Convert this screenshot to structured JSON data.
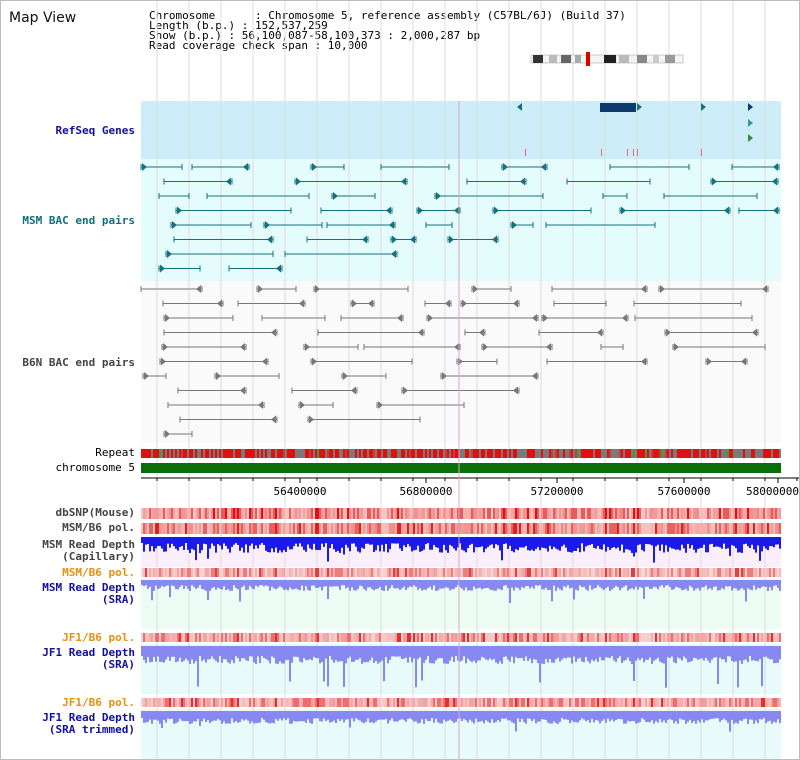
{
  "header": {
    "title": "Map View",
    "chromosome": "Chromosome      : Chromosome 5, reference assembly (C57BL/6J) (Build 37)",
    "length": "Length (b.p.) : 152,537,259",
    "show": "Show (b.p.) : 56,100,087-58,100,373 : 2,000,287 bp",
    "coverage": "Read coverage check span : 10,000"
  },
  "tracks": {
    "refseq": "RefSeq Genes",
    "msm_bac": "MSM BAC end pairs",
    "b6n_bac": "B6N BAC end pairs",
    "repeat": "Repeat",
    "chromosome": "chromosome 5",
    "dbsnp": "dbSNP(Mouse)",
    "msm_pol1": "MSM/B6 pol.",
    "msm_depth_cap_1": "MSM Read Depth",
    "msm_depth_cap_2": "(Capillary)",
    "msm_pol2": "MSM/B6 pol.",
    "msm_depth_sra_1": "MSM Read Depth",
    "msm_depth_sra_2": "(SRA)",
    "jf1_pol1": "JF1/B6 pol.",
    "jf1_depth_sra_1": "JF1 Read Depth",
    "jf1_depth_sra_2": "(SRA)",
    "jf1_pol2": "JF1/B6 pol.",
    "jf1_depth_trim_1": "JF1 Read Depth",
    "jf1_depth_trim_2": "(SRA trimmed)"
  },
  "ruler": {
    "ticks": [
      "56400000",
      "56800000",
      "57200000",
      "57600000",
      "58000000"
    ]
  },
  "colors": {
    "refseq_bg": "#cdeef8",
    "bac_bg": "#e4fcfc",
    "msm_feature": "#16717e",
    "b6n_feature": "#777777",
    "gene_navy": "#0d3a6e",
    "chromosome": "#0a6e0a",
    "repeat_red": "#e01010",
    "depth_blue": "#1a1aee",
    "depth_light": "#8888f2"
  }
}
